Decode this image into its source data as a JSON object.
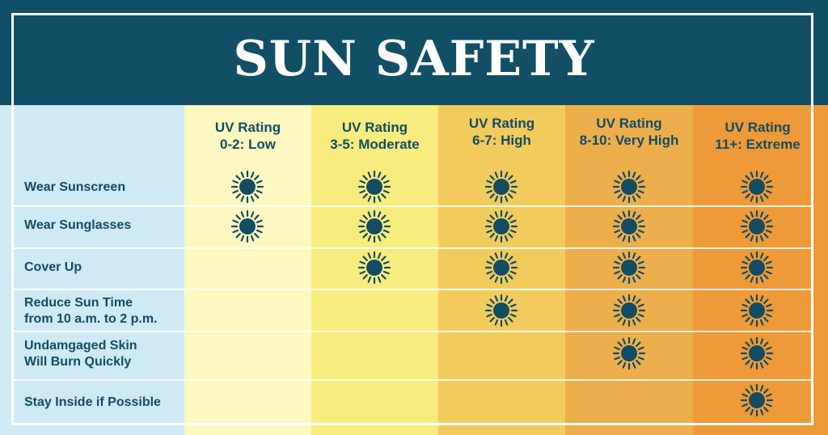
{
  "title": "SUN SAFETY",
  "columns": [
    {
      "line1": "UV Rating",
      "line2": "0-2: Low",
      "color": "#fdf8c0"
    },
    {
      "line1": "UV Rating",
      "line2": "3-5: Moderate",
      "color": "#f9ec7e"
    },
    {
      "line1": "UV Rating",
      "line2": "6-7: High",
      "color": "#f1cc5c"
    },
    {
      "line1": "UV Rating",
      "line2": "8-10: Very High",
      "color": "#edae4c"
    },
    {
      "line1": "UV Rating",
      "line2": "11+: Extreme",
      "color": "#ee9a38"
    }
  ],
  "rows": [
    {
      "line1": "Wear Sunscreen",
      "line2": "",
      "marks": [
        true,
        true,
        true,
        true,
        true
      ]
    },
    {
      "line1": "Wear Sunglasses",
      "line2": "",
      "marks": [
        true,
        true,
        true,
        true,
        true
      ]
    },
    {
      "line1": "Cover Up",
      "line2": "",
      "marks": [
        false,
        true,
        true,
        true,
        true
      ]
    },
    {
      "line1": "Reduce Sun Time",
      "line2": "from 10 a.m. to 2 p.m.",
      "marks": [
        false,
        false,
        true,
        true,
        true
      ]
    },
    {
      "line1": "Undamgaged Skin",
      "line2": "Will Burn Quickly",
      "marks": [
        false,
        false,
        false,
        true,
        true
      ]
    },
    {
      "line1": "Stay Inside if Possible",
      "line2": "",
      "marks": [
        false,
        false,
        false,
        false,
        true
      ]
    }
  ],
  "icon": "sun-icon",
  "colors": {
    "header": "#114f66",
    "text": "#134c63",
    "sun": "#134c63",
    "label_column": "#cdeaf5"
  }
}
